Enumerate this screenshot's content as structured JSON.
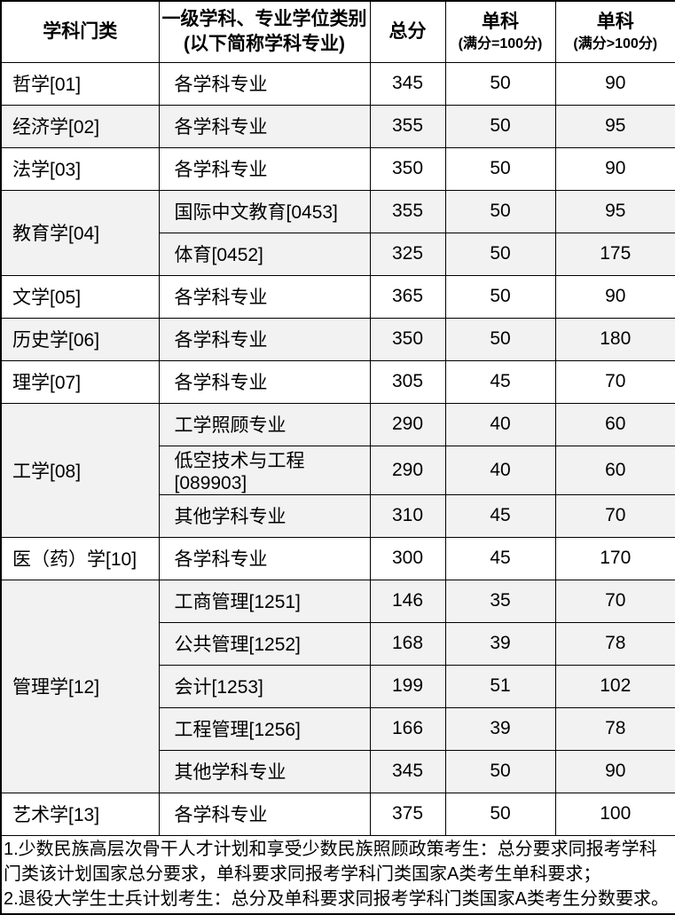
{
  "colors": {
    "background": "#ffffff",
    "row_shade": "#f2f2f2",
    "border": "#000000",
    "text": "#000000"
  },
  "table": {
    "headers": {
      "category": "学科门类",
      "major_line1": "一级学科、专业学位类别",
      "major_line2": "(以下简称学科专业)",
      "total": "总分",
      "single_100": "单科",
      "single_100_sub": "(满分=100分)",
      "single_gt100": "单科",
      "single_gt100_sub": "(满分>100分)"
    },
    "groups": [
      {
        "category": "哲学[01]",
        "shaded": false,
        "rows": [
          {
            "major": "各学科专业",
            "total": "345",
            "s100": "50",
            "sgt100": "90"
          }
        ]
      },
      {
        "category": "经济学[02]",
        "shaded": true,
        "rows": [
          {
            "major": "各学科专业",
            "total": "355",
            "s100": "50",
            "sgt100": "95"
          }
        ]
      },
      {
        "category": "法学[03]",
        "shaded": false,
        "rows": [
          {
            "major": "各学科专业",
            "total": "350",
            "s100": "50",
            "sgt100": "90"
          }
        ]
      },
      {
        "category": "教育学[04]",
        "shaded": true,
        "rows": [
          {
            "major": "国际中文教育[0453]",
            "total": "355",
            "s100": "50",
            "sgt100": "95"
          },
          {
            "major": "体育[0452]",
            "total": "325",
            "s100": "50",
            "sgt100": "175"
          }
        ]
      },
      {
        "category": "文学[05]",
        "shaded": false,
        "rows": [
          {
            "major": "各学科专业",
            "total": "365",
            "s100": "50",
            "sgt100": "90"
          }
        ]
      },
      {
        "category": "历史学[06]",
        "shaded": true,
        "rows": [
          {
            "major": "各学科专业",
            "total": "350",
            "s100": "50",
            "sgt100": "180"
          }
        ]
      },
      {
        "category": "理学[07]",
        "shaded": false,
        "rows": [
          {
            "major": "各学科专业",
            "total": "305",
            "s100": "45",
            "sgt100": "70"
          }
        ]
      },
      {
        "category": "工学[08]",
        "shaded": true,
        "rows": [
          {
            "major": "工学照顾专业",
            "total": "290",
            "s100": "40",
            "sgt100": "60"
          },
          {
            "major": "低空技术与工程[089903]",
            "total": "290",
            "s100": "40",
            "sgt100": "60"
          },
          {
            "major": "其他学科专业",
            "total": "310",
            "s100": "45",
            "sgt100": "70"
          }
        ]
      },
      {
        "category": "医（药）学[10]",
        "shaded": false,
        "rows": [
          {
            "major": "各学科专业",
            "total": "300",
            "s100": "45",
            "sgt100": "170"
          }
        ]
      },
      {
        "category": "管理学[12]",
        "shaded": true,
        "rows": [
          {
            "major": "工商管理[1251]",
            "total": "146",
            "s100": "35",
            "sgt100": "70"
          },
          {
            "major": "公共管理[1252]",
            "total": "168",
            "s100": "39",
            "sgt100": "78"
          },
          {
            "major": "会计[1253]",
            "total": "199",
            "s100": "51",
            "sgt100": "102"
          },
          {
            "major": "工程管理[1256]",
            "total": "166",
            "s100": "39",
            "sgt100": "78"
          },
          {
            "major": "其他学科专业",
            "total": "345",
            "s100": "50",
            "sgt100": "90"
          }
        ]
      },
      {
        "category": "艺术学[13]",
        "shaded": false,
        "rows": [
          {
            "major": "各学科专业",
            "total": "375",
            "s100": "50",
            "sgt100": "100"
          }
        ]
      }
    ]
  },
  "notes": [
    "1.少数民族高层次骨干人才计划和享受少数民族照顾政策考生：总分要求同报考学科门类该计划国家总分要求，单科要求同报考学科门类国家A类考生单科要求；",
    "2.退役大学生士兵计划考生：总分及单科要求同报考学科门类国家A类考生分数要求。"
  ]
}
